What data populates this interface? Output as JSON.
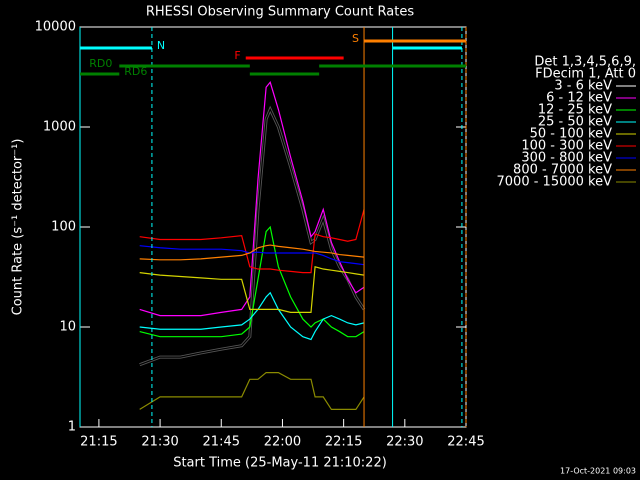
{
  "chart_data": {
    "type": "line",
    "title": "RHESSI Observing Summary Count Rates",
    "y_label": "Count Rate (s⁻¹ detector⁻¹)",
    "x_label": "Start Time (25-May-11 21:10:22)",
    "legend_header": [
      "Det 1,3,4,5,6,9,",
      "FDecim 1, Att 0"
    ],
    "footer": "17-Oct-2021 09:03",
    "log_y": true,
    "legend": "right",
    "xlim": [
      "21:10:22",
      "22:45"
    ],
    "xticks": [
      "21:15",
      "21:30",
      "21:45",
      "22:00",
      "22:15",
      "22:30",
      "22:45"
    ],
    "ylim": [
      1,
      10000
    ],
    "yticks": [
      1,
      10,
      100,
      1000,
      10000
    ],
    "x": [
      "21:25",
      "21:30",
      "21:35",
      "21:40",
      "21:45",
      "21:50",
      "21:52",
      "21:54",
      "21:56",
      "21:57",
      "21:59",
      "22:02",
      "22:05",
      "22:07",
      "22:08",
      "22:10",
      "22:12",
      "22:14",
      "22:16",
      "22:18",
      "22:20"
    ],
    "series": [
      {
        "name": "3 - 6 keV",
        "color": "#000000",
        "values": [
          4.2,
          5,
          5,
          5.5,
          6,
          6.5,
          8,
          150,
          1200,
          1500,
          1000,
          400,
          150,
          70,
          75,
          120,
          60,
          40,
          30,
          20,
          15
        ]
      },
      {
        "name": "6 - 12 keV",
        "color": "#ff00ff",
        "values": [
          15,
          13,
          13,
          13,
          14,
          15,
          20,
          300,
          2500,
          2800,
          1500,
          500,
          180,
          80,
          90,
          150,
          70,
          45,
          30,
          22,
          25
        ]
      },
      {
        "name": "12 - 25 keV",
        "color": "#00ff00",
        "values": [
          9,
          8,
          8,
          8,
          8,
          8.5,
          10,
          30,
          90,
          100,
          40,
          20,
          12,
          10,
          11,
          12,
          10,
          9,
          8,
          8,
          9
        ]
      },
      {
        "name": "25 - 50 keV",
        "color": "#00ffff",
        "values": [
          10,
          9.5,
          9.5,
          9.5,
          10,
          10.5,
          12,
          15,
          20,
          22,
          15,
          10,
          8,
          7.5,
          9,
          12,
          13,
          12,
          11,
          10.5,
          11
        ]
      },
      {
        "name": "50 - 100 keV",
        "color": "#d4d400",
        "values": [
          35,
          33,
          32,
          31,
          30,
          30,
          15,
          15,
          15,
          15,
          15,
          14,
          14,
          14,
          40,
          38,
          37,
          36,
          35,
          34,
          33
        ]
      },
      {
        "name": "100 - 300 keV",
        "color": "#ff0000",
        "values": [
          80,
          75,
          75,
          75,
          78,
          82,
          40,
          38,
          38,
          38,
          37,
          36,
          35,
          35,
          85,
          80,
          78,
          75,
          72,
          75,
          150
        ]
      },
      {
        "name": "300 - 800 keV",
        "color": "#0000ff",
        "values": [
          65,
          62,
          60,
          60,
          60,
          58,
          55,
          56,
          55,
          55,
          55,
          55,
          55,
          55,
          55,
          52,
          48,
          45,
          44,
          43,
          42
        ]
      },
      {
        "name": "800 - 7000 keV",
        "color": "#ff8000",
        "values": [
          48,
          47,
          47,
          48,
          50,
          52,
          55,
          62,
          65,
          66,
          64,
          62,
          60,
          58,
          57,
          56,
          55,
          53,
          52,
          51,
          50
        ]
      },
      {
        "name": "7000 - 15000 keV",
        "color": "#8b8b00",
        "values": [
          1.5,
          2,
          2,
          2,
          2,
          2,
          3,
          3,
          3.5,
          3.5,
          3.5,
          3,
          3,
          3,
          2,
          2,
          1.5,
          1.5,
          1.5,
          1.5,
          2
        ]
      }
    ],
    "flags": [
      {
        "label": "N",
        "color": "#00ffff",
        "segments": [
          [
            "21:10:22",
            "21:28"
          ],
          [
            "22:27",
            "22:44"
          ]
        ]
      },
      {
        "label": "F",
        "color": "#ff0000",
        "segments": [
          [
            "21:51",
            "22:15"
          ]
        ]
      },
      {
        "label": "S",
        "color": "#ff8000",
        "segments": [
          [
            "22:20",
            "22:45"
          ]
        ]
      },
      {
        "label": "RD0",
        "color": "#008000",
        "segments": [
          [
            "21:20",
            "21:52"
          ],
          [
            "22:09",
            "22:45"
          ]
        ]
      },
      {
        "label": "RD6",
        "color": "#008000",
        "segments": [
          [
            "21:10:22",
            "21:20"
          ],
          [
            "21:52",
            "22:09"
          ]
        ]
      }
    ]
  }
}
